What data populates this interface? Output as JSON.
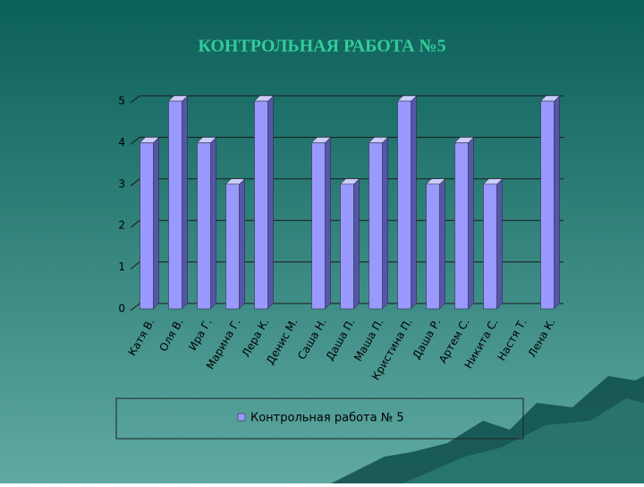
{
  "chart_data": {
    "type": "bar",
    "title": "КОНТРОЛЬНАЯ РАБОТА №5",
    "categories": [
      "Катя В.",
      "Оля В.",
      "Ира Г.",
      "Марина Г.",
      "Лера К.",
      "Денис М.",
      "Саша Н.",
      "Даша П.",
      "Маша П.",
      "Кристина П.",
      "Даша Р.",
      "Артем С.",
      "Никита С.",
      "Настя Т.",
      "Лена К."
    ],
    "series": [
      {
        "name": "Контрольная работа № 5",
        "color": "#9999ff",
        "values": [
          4,
          5,
          4,
          3,
          5,
          null,
          4,
          3,
          4,
          5,
          3,
          4,
          3,
          null,
          5
        ]
      }
    ],
    "ylim": [
      0,
      5
    ],
    "yticks": [
      0,
      1,
      2,
      3,
      4,
      5
    ],
    "grid": true,
    "legend": "bottom"
  }
}
